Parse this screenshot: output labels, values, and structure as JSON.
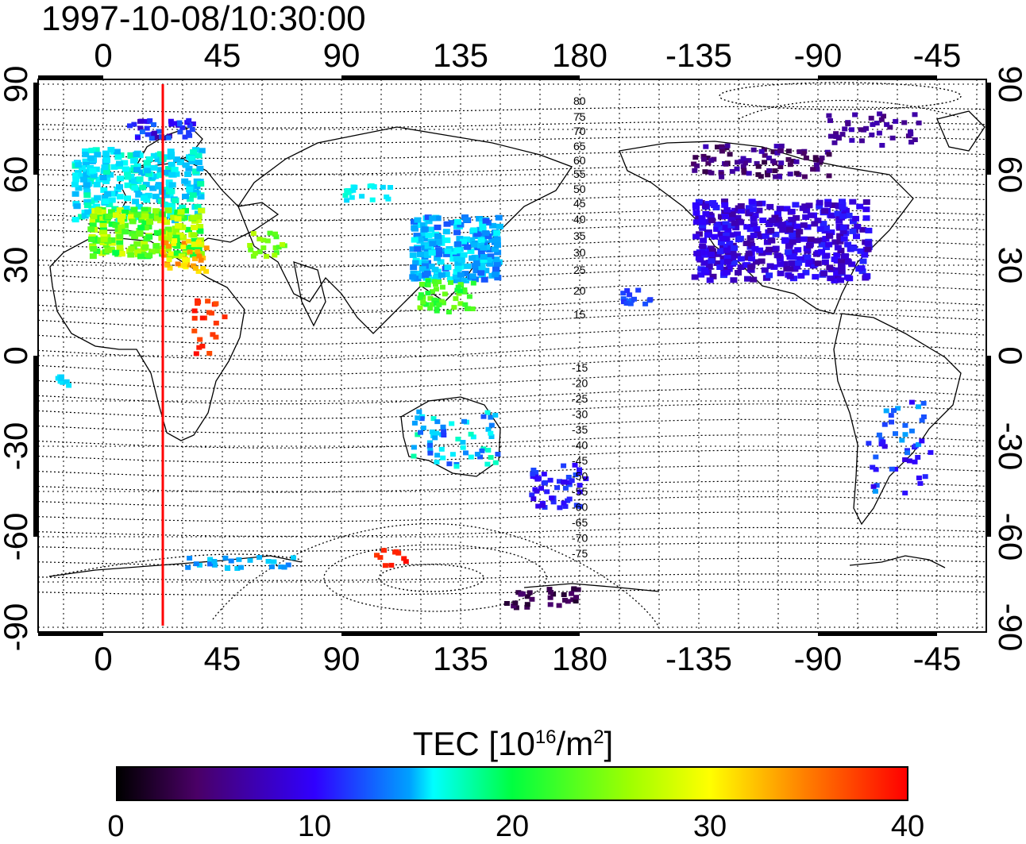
{
  "title": "1997-10-08/10:30:00",
  "map": {
    "lon_labels": [
      "0",
      "45",
      "90",
      "135",
      "180",
      "-135",
      "-90",
      "-45"
    ],
    "lat_labels": [
      "90",
      "60",
      "30",
      "0",
      "-30",
      "-60",
      "-90"
    ],
    "contour_labels_north": [
      "80",
      "75",
      "70",
      "65",
      "60",
      "55",
      "50",
      "45",
      "40",
      "35",
      "30",
      "25",
      "20",
      "15"
    ],
    "contour_labels_south": [
      "-15",
      "-20",
      "-25",
      "-30",
      "-35",
      "-40",
      "-45",
      "-50",
      "-55",
      "-60",
      "-65",
      "-70",
      "-75"
    ],
    "marker_line_color": "#ff0000"
  },
  "colorbar": {
    "label_prefix": "TEC  [10",
    "label_exp1": "16",
    "label_mid": "/m",
    "label_exp2": "2",
    "label_suffix": "]",
    "ticks": [
      "0",
      "10",
      "20",
      "30",
      "40"
    ],
    "range": [
      0,
      40
    ],
    "colors": [
      "#000000",
      "#4a0066",
      "#3000ff",
      "#00a0ff",
      "#00ffff",
      "#00ff40",
      "#a0ff00",
      "#ffff00",
      "#ff8000",
      "#ff0000"
    ]
  }
}
